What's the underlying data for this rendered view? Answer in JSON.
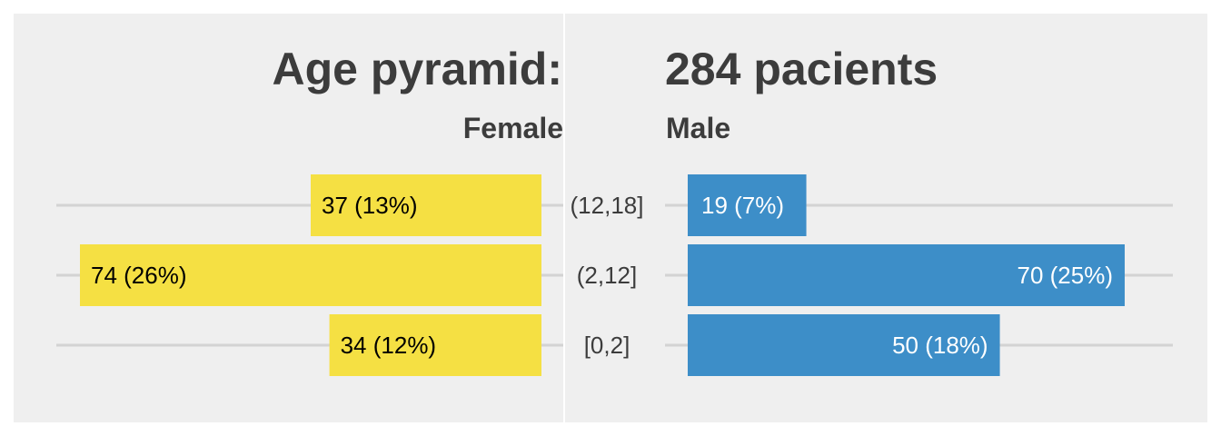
{
  "chart_data": {
    "type": "bar",
    "orientation": "horizontal",
    "title_left": "Age pyramid:",
    "title_right": "284 pacients",
    "categories": [
      "(12,18]",
      "(2,12]",
      "[0,2]"
    ],
    "series": [
      {
        "name": "Female",
        "values": [
          37,
          74,
          34
        ],
        "labels": [
          "37 (13%)",
          "74 (26%)",
          "34 (12%)"
        ],
        "color": "#f5e043",
        "label_color": "#000000"
      },
      {
        "name": "Male",
        "values": [
          19,
          70,
          50
        ],
        "labels": [
          "19 (7%)",
          "70 (25%)",
          "50 (18%)"
        ],
        "color": "#3d8ec8",
        "label_color": "#ffffff"
      }
    ],
    "xlim": [
      0,
      75
    ],
    "grid": true,
    "background": "#efefef",
    "grid_color": "#d3d3d3"
  }
}
